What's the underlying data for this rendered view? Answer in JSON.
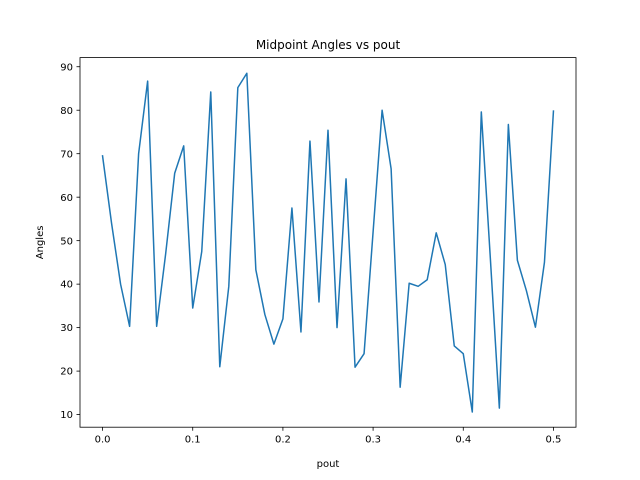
{
  "chart_data": {
    "type": "line",
    "title": "Midpoint Angles vs pout",
    "xlabel": "pout",
    "ylabel": "Angles",
    "xlim": [
      -0.025,
      0.525
    ],
    "ylim": [
      7.1,
      92.1
    ],
    "xticks": [
      0.0,
      0.1,
      0.2,
      0.3,
      0.4,
      0.5
    ],
    "xtick_labels": [
      "0.0",
      "0.1",
      "0.2",
      "0.3",
      "0.4",
      "0.5"
    ],
    "yticks": [
      10,
      20,
      30,
      40,
      50,
      60,
      70,
      80,
      90
    ],
    "ytick_labels": [
      "10",
      "20",
      "30",
      "40",
      "50",
      "60",
      "70",
      "80",
      "90"
    ],
    "grid": false,
    "series": [
      {
        "color": "#1f77b4",
        "x": [
          0.0,
          0.01,
          0.02,
          0.03,
          0.04,
          0.05,
          0.06,
          0.07,
          0.08,
          0.09,
          0.1,
          0.11,
          0.12,
          0.13,
          0.14,
          0.15,
          0.16,
          0.17,
          0.18,
          0.19,
          0.2,
          0.21,
          0.22,
          0.23,
          0.24,
          0.25,
          0.26,
          0.27,
          0.28,
          0.29,
          0.3,
          0.31,
          0.32,
          0.33,
          0.34,
          0.35,
          0.36,
          0.37,
          0.38,
          0.39,
          0.4,
          0.41,
          0.42,
          0.43,
          0.44,
          0.45,
          0.46,
          0.47,
          0.48,
          0.49,
          0.5
        ],
        "y": [
          69.5,
          54.0,
          40.0,
          30.3,
          70.0,
          86.7,
          30.3,
          47.0,
          65.5,
          71.8,
          34.5,
          47.5,
          84.2,
          21.0,
          39.5,
          85.2,
          88.5,
          43.3,
          33.0,
          26.2,
          32.0,
          57.5,
          29.0,
          72.9,
          35.9,
          75.4,
          30.0,
          64.2,
          20.9,
          24.0,
          52.0,
          80.0,
          66.5,
          16.3,
          40.2,
          39.5,
          41.0,
          51.8,
          44.5,
          25.8,
          24.0,
          10.6,
          79.6,
          46.0,
          11.5,
          76.7,
          45.5,
          38.5,
          30.1,
          45.0,
          79.8
        ]
      }
    ]
  }
}
